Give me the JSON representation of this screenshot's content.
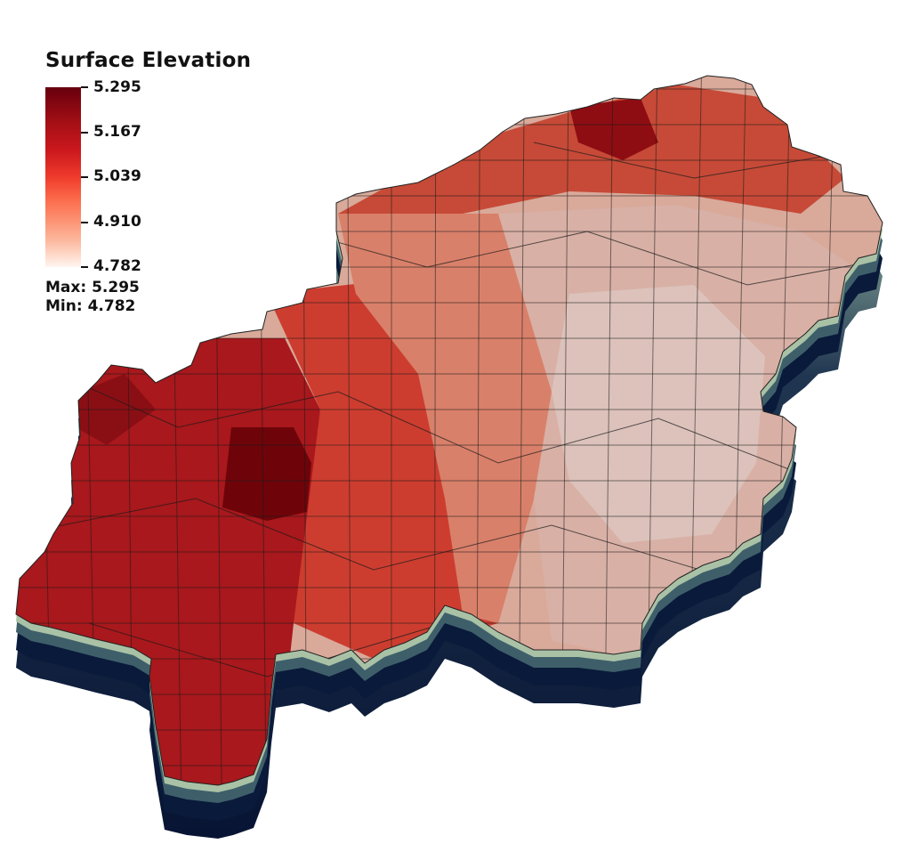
{
  "legend": {
    "title": "Surface Elevation",
    "ticks": [
      "5.295",
      "5.167",
      "5.039",
      "4.910",
      "4.782"
    ],
    "max_label": "Max:",
    "max_value": "5.295",
    "min_label": "Min:",
    "min_value": "4.782",
    "colormap": [
      "#67000d",
      "#a50f15",
      "#cb181d",
      "#ef3b2c",
      "#fb6a4a",
      "#fc9272",
      "#fcbba1",
      "#fff5f0"
    ]
  },
  "mesh": {
    "description_colors": {
      "edge": "#1a1a1a",
      "wall_top": "#9fb8a2",
      "wall_bottom": "#071433"
    }
  }
}
